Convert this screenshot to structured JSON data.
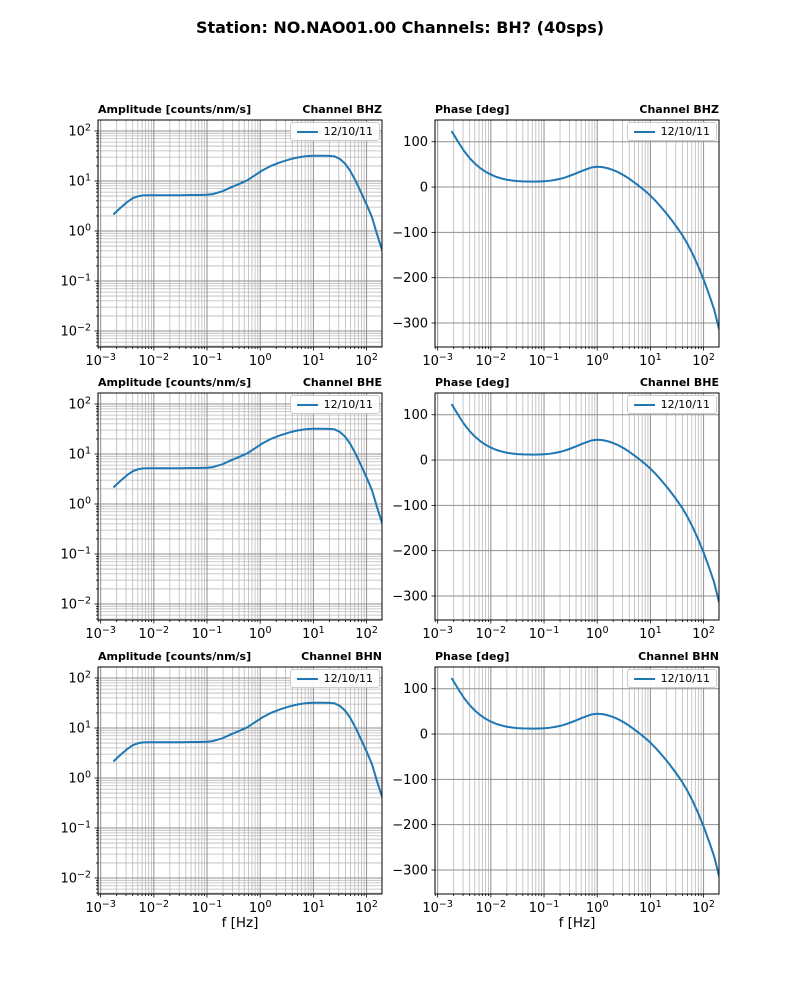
{
  "figure": {
    "suptitle": "Station: NO.NAO01.00 Channels: BH? (40sps)",
    "background": "#ffffff"
  },
  "chart_data": {
    "type": "line",
    "description": "Instrument frequency response: amplitude and phase vs frequency for three channels",
    "layout": "3 rows (BHZ, BHE, BHN) x 2 columns (amplitude, phase)",
    "legend_label": "12/10/11",
    "legend_position": "upper right",
    "style": {
      "line_color": "#1f77b4",
      "line_width": 2,
      "grid_major_color": "#8f8f8f",
      "grid_minor_color": "#bababa",
      "frame_color": "#000000"
    },
    "x_axis": {
      "label": "f [Hz]",
      "scale": "log",
      "tick_exponents": [
        -3,
        -2,
        -1,
        0,
        1,
        2
      ],
      "range_log10": [
        -3.05,
        2.29
      ],
      "minor_grid": true
    },
    "amplitude_axis": {
      "title": "Amplitude [counts/nm/s]",
      "scale": "log",
      "tick_exponents": [
        2,
        1,
        0,
        -1,
        -2
      ],
      "range_log10": [
        -2.32,
        2.22
      ],
      "minor_grid": true
    },
    "phase_axis": {
      "title": "Phase [deg]",
      "scale": "linear",
      "ticks": [
        100,
        0,
        -100,
        -200,
        -300
      ],
      "range": [
        -353,
        148
      ],
      "minor_grid": false
    },
    "panels": [
      {
        "channel": "BHZ",
        "title_left": "Amplitude [counts/nm/s]",
        "title_right": "Channel BHZ",
        "axis": "amplitude",
        "series": "amplitude",
        "legend": "12/10/11"
      },
      {
        "channel": "BHZ",
        "title_left": "Phase [deg]",
        "title_right": "Channel BHZ",
        "axis": "phase",
        "series": "phase",
        "legend": "12/10/11"
      },
      {
        "channel": "BHE",
        "title_left": "Amplitude [counts/nm/s]",
        "title_right": "Channel BHE",
        "axis": "amplitude",
        "series": "amplitude",
        "legend": "12/10/11"
      },
      {
        "channel": "BHE",
        "title_left": "Phase [deg]",
        "title_right": "Channel BHE",
        "axis": "phase",
        "series": "phase",
        "legend": "12/10/11"
      },
      {
        "channel": "BHN",
        "title_left": "Amplitude [counts/nm/s]",
        "title_right": "Channel BHN",
        "axis": "amplitude",
        "series": "amplitude",
        "legend": "12/10/11"
      },
      {
        "channel": "BHN",
        "title_left": "Phase [deg]",
        "title_right": "Channel BHN",
        "axis": "phase",
        "series": "phase",
        "legend": "12/10/11"
      }
    ],
    "series": {
      "amplitude": {
        "unit": "counts/nm/s",
        "freq_hz": [
          0.00178,
          0.0024,
          0.00316,
          0.00398,
          0.005,
          0.0063,
          0.0089,
          0.0126,
          0.02,
          0.0316,
          0.05,
          0.0708,
          0.1,
          0.132,
          0.2,
          0.269,
          0.398,
          0.562,
          0.794,
          1.12,
          1.58,
          2.34,
          3.55,
          5.01,
          7.08,
          10.0,
          15.1,
          20.0,
          25.1,
          31.6,
          39.8,
          50.1,
          63.1,
          79.4,
          100.0,
          126.0,
          158.0,
          195.0
        ],
        "values": [
          2.2,
          2.95,
          3.8,
          4.5,
          4.95,
          5.15,
          5.2,
          5.2,
          5.2,
          5.2,
          5.25,
          5.25,
          5.3,
          5.5,
          6.3,
          7.3,
          8.7,
          10.2,
          13.0,
          16.5,
          20.0,
          23.5,
          27.0,
          29.5,
          31.2,
          31.9,
          32.0,
          31.8,
          31.0,
          27.5,
          22.0,
          15.5,
          9.8,
          5.8,
          3.4,
          1.9,
          0.85,
          0.42
        ]
      },
      "phase": {
        "unit": "deg",
        "freq_hz": [
          0.00186,
          0.00251,
          0.00316,
          0.00398,
          0.005,
          0.0063,
          0.0079,
          0.01,
          0.0126,
          0.0158,
          0.02,
          0.0251,
          0.0316,
          0.0398,
          0.05,
          0.063,
          0.079,
          0.1,
          0.126,
          0.158,
          0.2,
          0.251,
          0.316,
          0.398,
          0.501,
          0.631,
          0.794,
          1.0,
          1.26,
          1.58,
          2.0,
          2.51,
          3.16,
          3.98,
          5.01,
          6.31,
          7.94,
          10.0,
          12.6,
          15.8,
          20.0,
          25.1,
          31.6,
          39.8,
          50.1,
          63.1,
          79.4,
          100.0,
          126.0,
          158.0,
          195.0
        ],
        "values": [
          122,
          97,
          79,
          64,
          52,
          42,
          34,
          27.5,
          22.5,
          19,
          16.2,
          14.4,
          13.2,
          12.5,
          12.2,
          12.1,
          12.3,
          12.8,
          13.8,
          15.5,
          18,
          21.3,
          25.5,
          30,
          35,
          39.5,
          43.5,
          44.8,
          44,
          41.5,
          37.5,
          32.5,
          26,
          18.5,
          10,
          1,
          -8.5,
          -19,
          -31,
          -44,
          -58,
          -73,
          -89,
          -106,
          -126,
          -149,
          -175,
          -204,
          -236,
          -270,
          -313
        ]
      }
    }
  }
}
